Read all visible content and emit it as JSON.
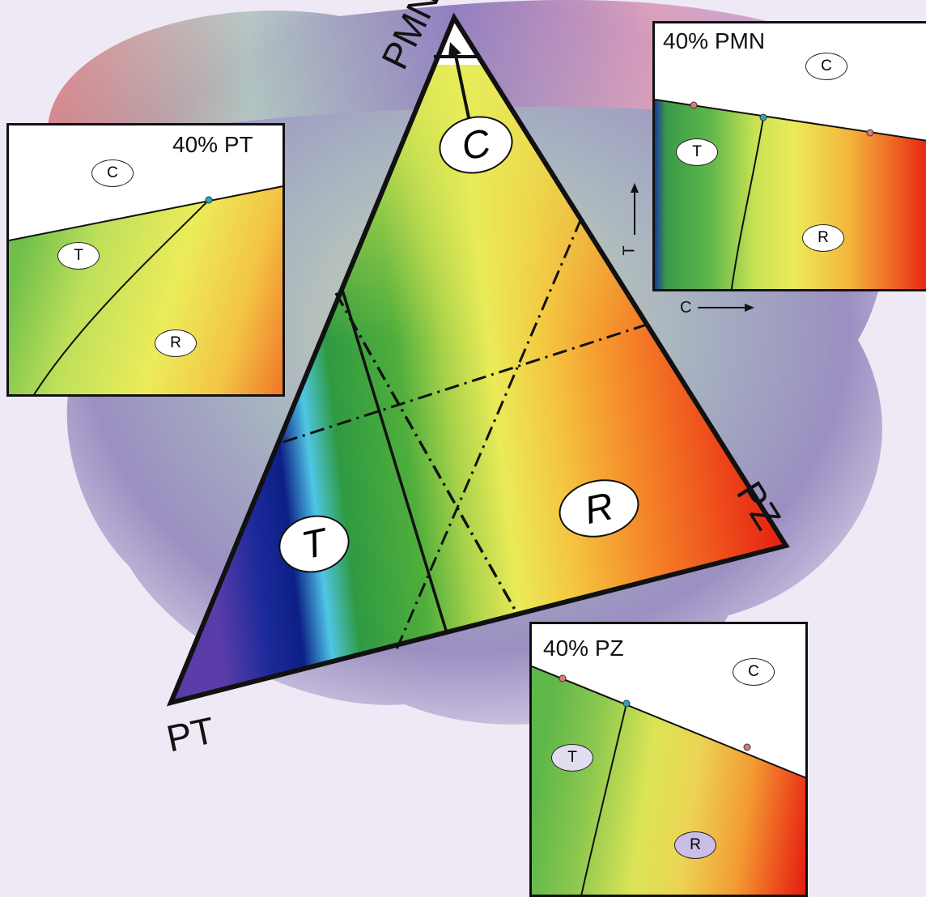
{
  "vertices": {
    "top": "PMN",
    "right": "PZ",
    "bottom_left": "PT"
  },
  "phases": {
    "cubic": "C",
    "tetragonal": "T",
    "rhombohedral": "R"
  },
  "axes": {
    "temperature": "T",
    "composition": "C"
  },
  "panels": {
    "pt": {
      "title": "40% PT",
      "c": "C",
      "t": "T",
      "r": "R"
    },
    "pmn": {
      "title": "40% PMN",
      "c": "C",
      "t": "T",
      "r": "R"
    },
    "pz": {
      "title": "40% PZ",
      "c": "C",
      "t": "T",
      "r": "R"
    }
  },
  "colors": {
    "point_pink": "#e07a78",
    "point_cyan": "#2aa6b8",
    "tetragonal_blue": "#0c2a8c",
    "rhombohedral_red": "#e51c12",
    "yellow": "#e9ea55",
    "green": "#3fae3f"
  }
}
